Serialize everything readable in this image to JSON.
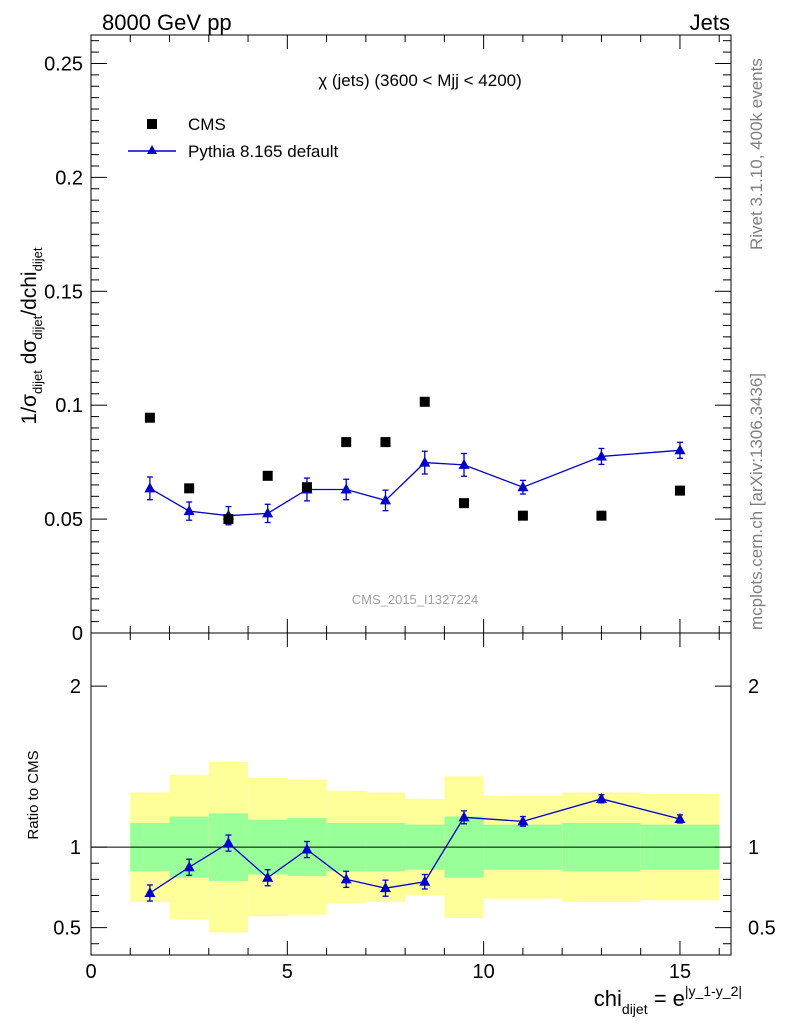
{
  "header": {
    "left": "8000 GeV pp",
    "right": "Jets"
  },
  "side_labels": {
    "rivet": "Rivet 3.1.10,  400k events",
    "mcplots": "mcplots.cern.ch [arXiv:1306.3436]"
  },
  "colors": {
    "data": "#000000",
    "mc": "#0000cc",
    "band_inner": "#99ff99",
    "band_outer": "#ffff99"
  },
  "chart_data": [
    {
      "type": "scatter",
      "title": "χ (jets) (3600 < Mjj < 4200)",
      "watermark": "CMS_2015_I1327224",
      "ylabel": "1/σ_dijet dσ_dijet/dchi_dijet",
      "ylabel_parts": {
        "a": "1/σ",
        "sub_a": "dijet",
        "b": " dσ",
        "sub_b": "dijet",
        "c": "/dchi",
        "sub_c": "dijet"
      },
      "xlim": [
        0,
        16.3
      ],
      "ylim": [
        0,
        0.2625
      ],
      "yticks": [
        0,
        0.05,
        0.1,
        0.15,
        0.2,
        0.25
      ],
      "ytick_labels": [
        "0",
        "0.05",
        "0.1",
        "0.15",
        "0.2",
        "0.25"
      ],
      "legend": [
        {
          "label": "CMS",
          "marker": "square"
        },
        {
          "label": "Pythia 8.165 default",
          "marker": "triangle-line"
        }
      ],
      "series": [
        {
          "name": "CMS",
          "x": [
            1.5,
            2.5,
            3.5,
            4.5,
            5.5,
            6.5,
            7.5,
            8.5,
            9.5,
            11,
            13,
            15
          ],
          "values": [
            0.0945,
            0.0635,
            0.05,
            0.069,
            0.064,
            0.0838,
            0.0838,
            0.1015,
            0.057,
            0.0515,
            0.0515,
            0.0625
          ]
        },
        {
          "name": "Pythia 8.165 default",
          "x": [
            1.5,
            2.5,
            3.5,
            4.5,
            5.5,
            6.5,
            7.5,
            8.5,
            9.5,
            11,
            13,
            15
          ],
          "values": [
            0.0635,
            0.0535,
            0.0515,
            0.0525,
            0.063,
            0.063,
            0.0582,
            0.0748,
            0.0738,
            0.064,
            0.0775,
            0.0802
          ],
          "errors": [
            0.005,
            0.004,
            0.004,
            0.004,
            0.005,
            0.0045,
            0.0045,
            0.005,
            0.005,
            0.003,
            0.0035,
            0.0035
          ]
        }
      ]
    },
    {
      "type": "line",
      "ylabel": "Ratio to CMS",
      "xlabel": "chi",
      "xlabel_sub": "dijet",
      "xlabel_eq": " = e",
      "xlabel_sup": "|y_1-y_2|",
      "xlim": [
        0,
        16.3
      ],
      "ylim": [
        0.33,
        2.33
      ],
      "xticks": [
        0,
        5,
        10,
        15
      ],
      "xtick_labels": [
        "0",
        "5",
        "10",
        "15"
      ],
      "yticks": [
        0.5,
        1,
        2
      ],
      "ytick_labels": [
        "0.5",
        "1",
        "2"
      ],
      "reference": 1,
      "bins": [
        {
          "lo": 1,
          "hi": 2,
          "inner": [
            0.85,
            1.15
          ],
          "outer": [
            0.66,
            1.34
          ]
        },
        {
          "lo": 2,
          "hi": 3,
          "inner": [
            0.81,
            1.19
          ],
          "outer": [
            0.55,
            1.45
          ]
        },
        {
          "lo": 3,
          "hi": 4,
          "inner": [
            0.79,
            1.21
          ],
          "outer": [
            0.47,
            1.53
          ]
        },
        {
          "lo": 4,
          "hi": 5,
          "inner": [
            0.83,
            1.17
          ],
          "outer": [
            0.57,
            1.43
          ]
        },
        {
          "lo": 5,
          "hi": 6,
          "inner": [
            0.82,
            1.18
          ],
          "outer": [
            0.58,
            1.42
          ]
        },
        {
          "lo": 6,
          "hi": 7,
          "inner": [
            0.85,
            1.15
          ],
          "outer": [
            0.65,
            1.35
          ]
        },
        {
          "lo": 7,
          "hi": 8,
          "inner": [
            0.85,
            1.15
          ],
          "outer": [
            0.66,
            1.34
          ]
        },
        {
          "lo": 8,
          "hi": 9,
          "inner": [
            0.86,
            1.14
          ],
          "outer": [
            0.7,
            1.3
          ]
        },
        {
          "lo": 9,
          "hi": 10,
          "inner": [
            0.81,
            1.19
          ],
          "outer": [
            0.56,
            1.44
          ]
        },
        {
          "lo": 10,
          "hi": 12,
          "inner": [
            0.86,
            1.14
          ],
          "outer": [
            0.68,
            1.32
          ]
        },
        {
          "lo": 12,
          "hi": 14,
          "inner": [
            0.85,
            1.15
          ],
          "outer": [
            0.66,
            1.34
          ]
        },
        {
          "lo": 14,
          "hi": 16,
          "inner": [
            0.86,
            1.14
          ],
          "outer": [
            0.67,
            1.33
          ]
        }
      ],
      "series": [
        {
          "name": "Pythia 8.165 default / CMS",
          "x": [
            1.5,
            2.5,
            3.5,
            4.5,
            5.5,
            6.5,
            7.5,
            8.5,
            9.5,
            11,
            13,
            15
          ],
          "values": [
            0.715,
            0.875,
            1.025,
            0.81,
            0.985,
            0.8,
            0.745,
            0.785,
            1.185,
            1.16,
            1.3,
            1.175
          ],
          "errors": [
            0.05,
            0.05,
            0.05,
            0.05,
            0.05,
            0.05,
            0.05,
            0.045,
            0.04,
            0.03,
            0.025,
            0.025
          ]
        }
      ]
    }
  ]
}
